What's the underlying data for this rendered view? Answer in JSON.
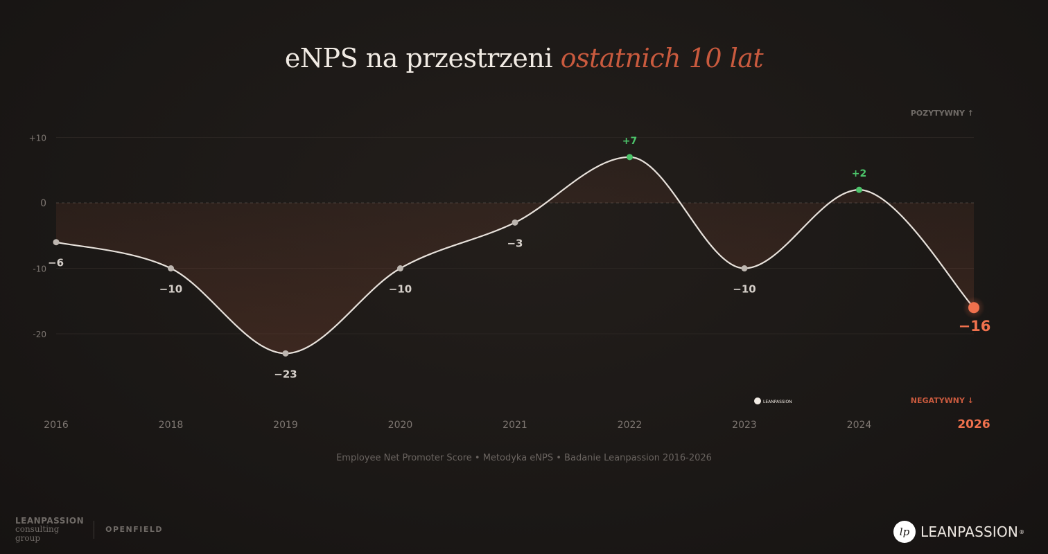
{
  "title": {
    "main": "eNPS na przestrzeni",
    "highlight": "ostatnich 10 lat"
  },
  "chart_data": {
    "type": "line",
    "categories": [
      "2016",
      "2018",
      "2019",
      "2020",
      "2021",
      "2022",
      "2023",
      "2024",
      "2026"
    ],
    "values": [
      -6,
      -10,
      -23,
      -10,
      -3,
      7,
      -10,
      2,
      -16
    ],
    "point_labels": [
      "−6",
      "−10",
      "−23",
      "−10",
      "−3",
      "+7",
      "−10",
      "+2",
      "−16"
    ],
    "y_ticks": [
      {
        "value": 10,
        "label": "+10"
      },
      {
        "value": 0,
        "label": "0"
      },
      {
        "value": -10,
        "label": "-10"
      },
      {
        "value": -20,
        "label": "-20"
      }
    ],
    "ylim": [
      -31,
      14
    ],
    "positive_label": "POZYTYWNY ↑",
    "negative_label": "NEGATYWNY ↓",
    "watermark": "LEANPASSION",
    "colors": {
      "line": "#e8e2dc",
      "positive": "#4cc46a",
      "negative_point": "#bdb6b0",
      "highlight": "#f0714d",
      "axis_text": "#7d7671",
      "grid": "#2a2522"
    }
  },
  "caption": "Employee Net Promoter Score • Metodyka eNPS • Badanie Leanpassion 2016-2026",
  "footer": {
    "left_brand_main": "LEANPASSION",
    "left_brand_sub1": "consulting",
    "left_brand_sub2": "group",
    "partner": "OPENFIELD",
    "logo_mark": "lp",
    "logo_text": "LEANPASSION",
    "logo_reg": "®"
  }
}
